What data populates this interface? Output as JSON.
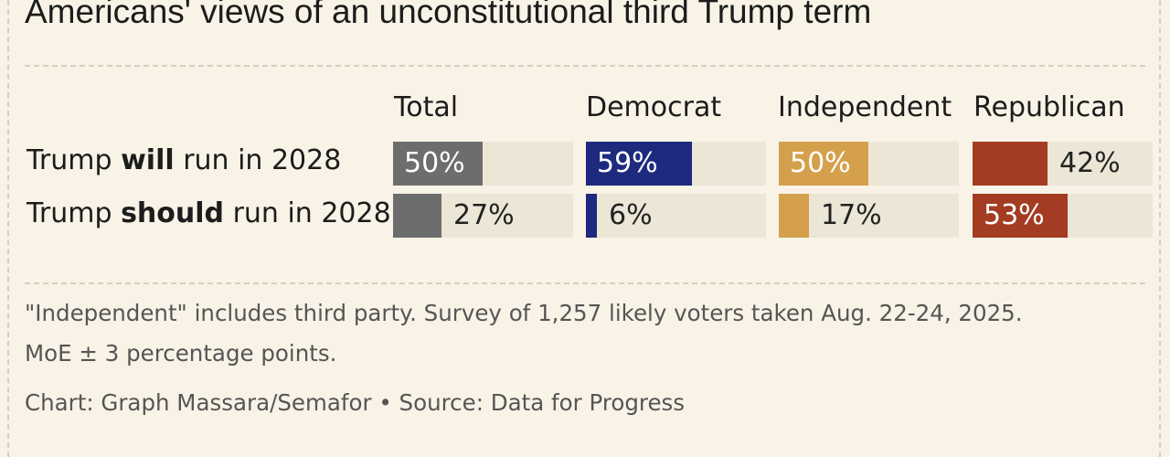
{
  "title": "Americans' views of an unconstitutional third Trump term",
  "chart_data": {
    "type": "bar",
    "columns": [
      "Total",
      "Democrat",
      "Independent",
      "Republican"
    ],
    "colors": [
      "#6d6d6d",
      "#1d2a7e",
      "#d4a04c",
      "#a33c22"
    ],
    "xlim": [
      0,
      100
    ],
    "rows": [
      {
        "pre": "Trump ",
        "bold": "will",
        "post": " run in 2028",
        "values": [
          50,
          59,
          50,
          42
        ]
      },
      {
        "pre": "Trump ",
        "bold": "should",
        "post": " run in 2028",
        "values": [
          27,
          6,
          17,
          53
        ]
      }
    ],
    "value_suffix": "%"
  },
  "footnote_line1": "\"Independent\" includes third party. Survey of 1,257 likely voters taken Aug. 22-24, 2025.",
  "footnote_line2": "MoE ± 3 percentage points.",
  "credit": "Chart: Graph Massara/Semafor • Source: Data for Progress"
}
